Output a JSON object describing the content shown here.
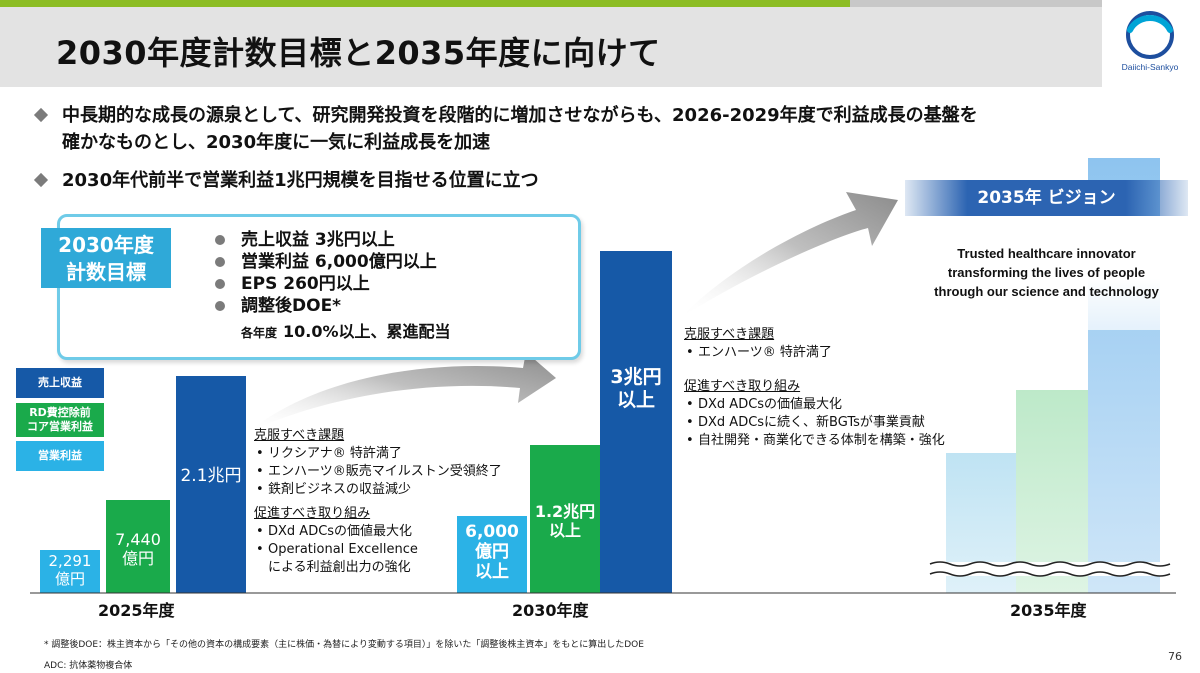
{
  "title": "2030年度計数目標と2035年度に向けて",
  "logo": {
    "brand": "Daiichi-Sankyo"
  },
  "bullets": [
    [
      "中長期的な成長の源泉として、研究開発投資を段階的に増加させながらも、2026-2029年度で利益成長の基盤を",
      "確かなものとし、2030年度に一気に利益成長を加速"
    ],
    [
      "2030年代前半で営業利益1兆円規模を目指せる位置に立つ"
    ]
  ],
  "targets": {
    "tag_line1": "2030年度",
    "tag_line2": "計数目標",
    "items": [
      "売上収益 3兆円以上",
      "営業利益 6,000億円以上",
      "EPS 260円以上",
      "調整後DOE*"
    ],
    "doe_small": "各年度",
    "doe_value": "10.0%以上、累進配当"
  },
  "legend": [
    "売上収益",
    "RD費控除前\nコア営業利益",
    "営業利益"
  ],
  "colors": {
    "revenue": "#1659a7",
    "core_op": "#1aaa4b",
    "op": "#2bb2e6",
    "vision": "#2c64b2"
  },
  "chart_data": {
    "type": "bar",
    "categories": [
      "2025年度",
      "2030年度",
      "2035年度"
    ],
    "series": [
      {
        "name": "営業利益",
        "labels": [
          "2,291\n億円",
          "6,000\n億円\n以上",
          ""
        ]
      },
      {
        "name": "RD費控除前コア営業利益",
        "labels": [
          "7,440\n億円",
          "1.2兆円\n以上",
          ""
        ]
      },
      {
        "name": "売上収益",
        "labels": [
          "2.1兆円",
          "3兆円\n以上",
          ""
        ]
      }
    ],
    "values_oku_yen": {
      "営業利益": [
        2291,
        6000,
        null
      ],
      "RD費控除前コア営業利益": [
        7440,
        12000,
        null
      ],
      "売上収益": [
        21000,
        30000,
        null
      ]
    }
  },
  "notes_2025": {
    "hdr1": "克服すべき課題",
    "items1": [
      "リクシアナ® 特許満了",
      "エンハーツ®販売マイルストン受領終了",
      "鉄剤ビジネスの収益減少"
    ],
    "hdr2": "促進すべき取り組み",
    "items2": [
      "DXd ADCsの価値最大化",
      "Operational Excellence\nによる利益創出力の強化"
    ]
  },
  "notes_2030": {
    "hdr1": "克服すべき課題",
    "items1": [
      "エンハーツ® 特許満了"
    ],
    "hdr2": "促進すべき取り組み",
    "items2": [
      "DXd ADCsの価値最大化",
      "DXd ADCsに続く、新BGTsが事業貢献",
      "自社開発・商業化できる体制を構築・強化"
    ]
  },
  "vision": {
    "title": "2035年 ビジョン",
    "text": [
      "Trusted healthcare innovator",
      "transforming the lives of people",
      "through our science and technology"
    ]
  },
  "footnotes": [
    "* 調整後DOE：株主資本から「その他の資本の構成要素（主に株価・為替により変動する項目）」を除いた「調整後株主資本」をもとに算出したDOE",
    "ADC: 抗体薬物複合体"
  ],
  "page_number": "76"
}
